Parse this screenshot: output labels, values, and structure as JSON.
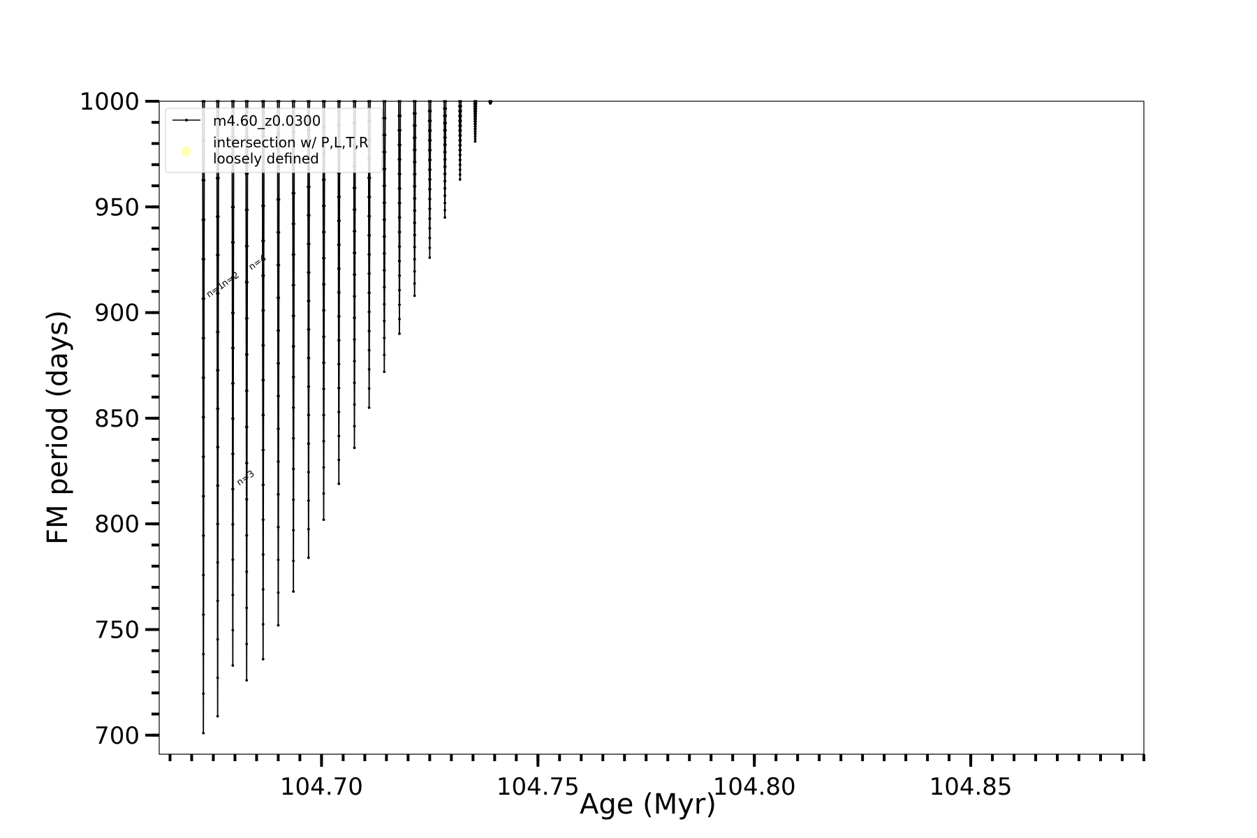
{
  "chart_data": {
    "type": "line",
    "xlabel": "Age (Myr)",
    "ylabel": "FM period (days)",
    "xlim": [
      104.6625,
      104.89
    ],
    "ylim": [
      691,
      1000
    ],
    "xticks": [
      104.7,
      104.75,
      104.8,
      104.85
    ],
    "xtick_labels": [
      "104.70",
      "104.75",
      "104.80",
      "104.85"
    ],
    "x_minor_step": 0.005,
    "yticks": [
      700,
      750,
      800,
      850,
      900,
      950,
      1000
    ],
    "ytick_labels": [
      "700",
      "750",
      "800",
      "850",
      "900",
      "950",
      "1000"
    ],
    "y_minor_step": 10,
    "legend": {
      "placement": "upper-left",
      "entries": [
        {
          "label": "m4.60_z0.0300",
          "marker": "line-dot",
          "color": "#000000"
        },
        {
          "label": "intersection w/ P,L,T,R",
          "label_line2": "loosely defined",
          "marker": "circle",
          "color": "#ffffb3"
        }
      ]
    },
    "series": [
      {
        "name": "m4.60_z0.0300",
        "color": "#000000",
        "spikes": [
          {
            "x": 104.6727,
            "ymin": 701
          },
          {
            "x": 104.676,
            "ymin": 709
          },
          {
            "x": 104.6795,
            "ymin": 733
          },
          {
            "x": 104.6827,
            "ymin": 726
          },
          {
            "x": 104.6865,
            "ymin": 736
          },
          {
            "x": 104.69,
            "ymin": 752
          },
          {
            "x": 104.6935,
            "ymin": 768
          },
          {
            "x": 104.697,
            "ymin": 784
          },
          {
            "x": 104.7005,
            "ymin": 802
          },
          {
            "x": 104.704,
            "ymin": 819
          },
          {
            "x": 104.7076,
            "ymin": 836
          },
          {
            "x": 104.711,
            "ymin": 855
          },
          {
            "x": 104.7145,
            "ymin": 872
          },
          {
            "x": 104.718,
            "ymin": 890
          },
          {
            "x": 104.7215,
            "ymin": 908
          },
          {
            "x": 104.725,
            "ymin": 926
          },
          {
            "x": 104.7285,
            "ymin": 945
          },
          {
            "x": 104.732,
            "ymin": 963
          },
          {
            "x": 104.7355,
            "ymin": 981
          },
          {
            "x": 104.739,
            "ymin": 999
          }
        ]
      }
    ],
    "annotations": [
      {
        "text": "n=1",
        "x": 104.674,
        "y": 907
      },
      {
        "text": "n=2",
        "x": 104.6775,
        "y": 912
      },
      {
        "text": "n=4",
        "x": 104.6838,
        "y": 920
      },
      {
        "text": "n=3",
        "x": 104.681,
        "y": 818
      }
    ]
  }
}
